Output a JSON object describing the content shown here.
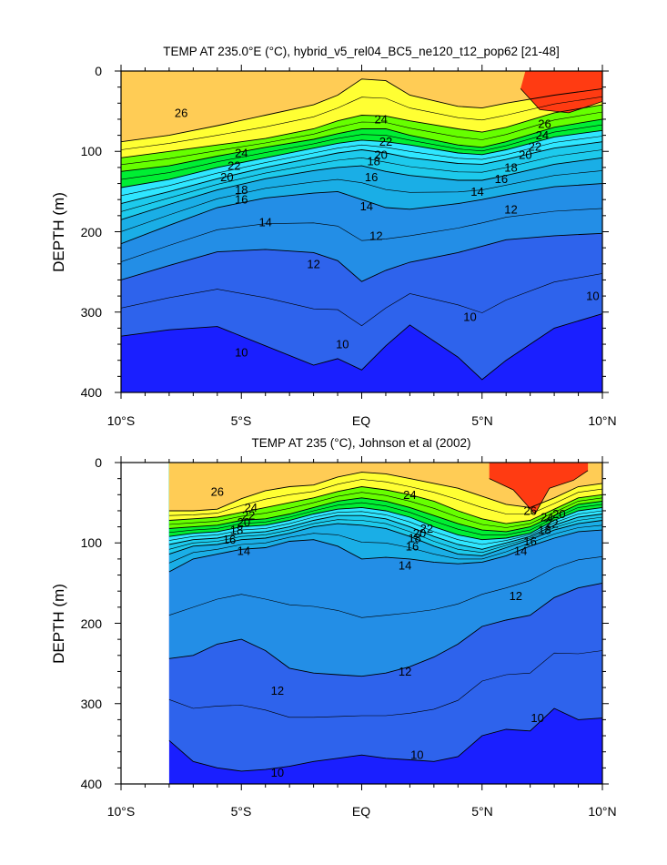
{
  "chart_data": [
    {
      "type": "contour",
      "title": "TEMP AT 235.0°E (°C), hybrid_v5_rel04_BC5_ne120_t12_pop62 [21-48]",
      "xlabel": "",
      "ylabel": "DEPTH (m)",
      "x_ticks": [
        {
          "value": -10,
          "label": "10°S"
        },
        {
          "value": -5,
          "label": "5°S"
        },
        {
          "value": 0,
          "label": "EQ"
        },
        {
          "value": 5,
          "label": "5°N"
        },
        {
          "value": 10,
          "label": "10°N"
        }
      ],
      "y_ticks": [
        {
          "value": 0,
          "label": "0"
        },
        {
          "value": 100,
          "label": "100"
        },
        {
          "value": 200,
          "label": "200"
        },
        {
          "value": 300,
          "label": "300"
        },
        {
          "value": 400,
          "label": "400"
        }
      ],
      "xlim": [
        -10,
        10
      ],
      "ylim": [
        0,
        400
      ],
      "data_xlim": [
        -10,
        10
      ],
      "isotherms_depth_m": {
        "lat": [
          -10,
          -8,
          -6,
          -4,
          -2,
          -1,
          0,
          1,
          2,
          4,
          5,
          6,
          8,
          10
        ],
        "26": [
          88,
          80,
          68,
          55,
          42,
          30,
          10,
          12,
          30,
          44,
          46,
          40,
          30,
          22
        ],
        "24": [
          108,
          100,
          92,
          84,
          72,
          62,
          55,
          56,
          62,
          72,
          76,
          70,
          52,
          42
        ],
        "22": [
          125,
          118,
          106,
          95,
          85,
          78,
          72,
          72,
          80,
          92,
          95,
          88,
          70,
          60
        ],
        "20": [
          145,
          135,
          120,
          108,
          96,
          90,
          86,
          88,
          92,
          102,
          104,
          98,
          82,
          74
        ],
        "18": [
          165,
          150,
          134,
          120,
          108,
          102,
          98,
          102,
          108,
          115,
          116,
          110,
          96,
          88
        ],
        "16": [
          185,
          166,
          148,
          134,
          124,
          120,
          118,
          125,
          130,
          136,
          136,
          130,
          116,
          108
        ],
        "14": [
          215,
          192,
          170,
          158,
          152,
          150,
          160,
          170,
          172,
          165,
          160,
          154,
          144,
          140
        ],
        "12": [
          260,
          242,
          225,
          222,
          226,
          236,
          262,
          248,
          238,
          226,
          218,
          210,
          205,
          202
        ],
        "10": [
          330,
          322,
          318,
          342,
          366,
          358,
          372,
          342,
          316,
          356,
          384,
          360,
          320,
          302
        ]
      },
      "contour_labels": [
        {
          "lat": -7.5,
          "depth": 52,
          "text": "26"
        },
        {
          "lat": 0.8,
          "depth": 60,
          "text": "24"
        },
        {
          "lat": 1.0,
          "depth": 88,
          "text": "22"
        },
        {
          "lat": 0.8,
          "depth": 104,
          "text": "20"
        },
        {
          "lat": 0.5,
          "depth": 112,
          "text": "18"
        },
        {
          "lat": 0.4,
          "depth": 132,
          "text": "16"
        },
        {
          "lat": 0.2,
          "depth": 168,
          "text": "14"
        },
        {
          "lat": -5.0,
          "depth": 102,
          "text": "24"
        },
        {
          "lat": -5.3,
          "depth": 118,
          "text": "22"
        },
        {
          "lat": -5.6,
          "depth": 132,
          "text": "20"
        },
        {
          "lat": -5.0,
          "depth": 148,
          "text": "18"
        },
        {
          "lat": -5.0,
          "depth": 160,
          "text": "16"
        },
        {
          "lat": -4.0,
          "depth": 188,
          "text": "14"
        },
        {
          "lat": -2.0,
          "depth": 240,
          "text": "12"
        },
        {
          "lat": 0.6,
          "depth": 205,
          "text": "12"
        },
        {
          "lat": 7.6,
          "depth": 66,
          "text": "26"
        },
        {
          "lat": 7.5,
          "depth": 80,
          "text": "24"
        },
        {
          "lat": 7.2,
          "depth": 94,
          "text": "22"
        },
        {
          "lat": 6.8,
          "depth": 104,
          "text": "20"
        },
        {
          "lat": 6.2,
          "depth": 120,
          "text": "18"
        },
        {
          "lat": 5.8,
          "depth": 134,
          "text": "16"
        },
        {
          "lat": 4.8,
          "depth": 150,
          "text": "14"
        },
        {
          "lat": 6.2,
          "depth": 172,
          "text": "12"
        },
        {
          "lat": -0.8,
          "depth": 340,
          "text": "10"
        },
        {
          "lat": -5.0,
          "depth": 350,
          "text": "10"
        },
        {
          "lat": 4.5,
          "depth": 306,
          "text": "10"
        },
        {
          "lat": 9.6,
          "depth": 280,
          "text": "10"
        }
      ]
    },
    {
      "type": "contour",
      "title": "TEMP AT 235 (°C), Johnson et al (2002)",
      "xlabel": "",
      "ylabel": "DEPTH (m)",
      "x_ticks": [
        {
          "value": -10,
          "label": "10°S"
        },
        {
          "value": -5,
          "label": "5°S"
        },
        {
          "value": 0,
          "label": "EQ"
        },
        {
          "value": 5,
          "label": "5°N"
        },
        {
          "value": 10,
          "label": "10°N"
        }
      ],
      "y_ticks": [
        {
          "value": 0,
          "label": "0"
        },
        {
          "value": 100,
          "label": "100"
        },
        {
          "value": 200,
          "label": "200"
        },
        {
          "value": 300,
          "label": "300"
        },
        {
          "value": 400,
          "label": "400"
        }
      ],
      "xlim": [
        -10,
        10
      ],
      "ylim": [
        0,
        400
      ],
      "data_xlim": [
        -8,
        10
      ],
      "isotherms_depth_m": {
        "lat": [
          -8,
          -7,
          -6,
          -5,
          -4,
          -3,
          -2,
          -1,
          0,
          1,
          2,
          3,
          4,
          5,
          6,
          7,
          8,
          9,
          10
        ],
        "26": [
          60,
          60,
          58,
          45,
          35,
          30,
          28,
          18,
          12,
          14,
          20,
          26,
          32,
          42,
          52,
          56,
          44,
          30,
          26
        ],
        "24": [
          72,
          70,
          68,
          62,
          56,
          50,
          44,
          36,
          30,
          34,
          40,
          48,
          60,
          70,
          76,
          72,
          58,
          44,
          40
        ],
        "22": [
          82,
          80,
          78,
          72,
          70,
          64,
          56,
          48,
          44,
          48,
          56,
          66,
          76,
          84,
          86,
          80,
          66,
          52,
          48
        ],
        "20": [
          92,
          88,
          86,
          80,
          78,
          72,
          64,
          58,
          56,
          60,
          68,
          80,
          90,
          96,
          94,
          88,
          72,
          60,
          56
        ],
        "18": [
          102,
          96,
          94,
          88,
          86,
          80,
          72,
          66,
          66,
          70,
          80,
          92,
          102,
          108,
          100,
          92,
          78,
          68,
          64
        ],
        "16": [
          114,
          104,
          102,
          96,
          94,
          88,
          80,
          76,
          78,
          82,
          92,
          104,
          114,
          116,
          106,
          96,
          84,
          76,
          72
        ],
        "14": [
          136,
          120,
          114,
          108,
          106,
          98,
          96,
          104,
          120,
          118,
          120,
          124,
          126,
          124,
          116,
          104,
          94,
          86,
          84
        ],
        "12": [
          244,
          240,
          226,
          220,
          234,
          256,
          262,
          264,
          266,
          262,
          254,
          242,
          226,
          204,
          196,
          190,
          168,
          156,
          150
        ],
        "10": [
          346,
          372,
          380,
          384,
          382,
          378,
          372,
          368,
          364,
          368,
          370,
          372,
          366,
          340,
          332,
          334,
          306,
          320,
          318
        ]
      },
      "contour_labels": [
        {
          "lat": -6.0,
          "depth": 36,
          "text": "26"
        },
        {
          "lat": -4.6,
          "depth": 56,
          "text": "24"
        },
        {
          "lat": -4.7,
          "depth": 66,
          "text": "22"
        },
        {
          "lat": -4.9,
          "depth": 74,
          "text": "20"
        },
        {
          "lat": -5.2,
          "depth": 84,
          "text": "18"
        },
        {
          "lat": -5.5,
          "depth": 96,
          "text": "16"
        },
        {
          "lat": -4.9,
          "depth": 110,
          "text": "14"
        },
        {
          "lat": 2.0,
          "depth": 40,
          "text": "24"
        },
        {
          "lat": 2.7,
          "depth": 82,
          "text": "22"
        },
        {
          "lat": 2.4,
          "depth": 88,
          "text": "20"
        },
        {
          "lat": 2.2,
          "depth": 94,
          "text": "18"
        },
        {
          "lat": 2.1,
          "depth": 104,
          "text": "16"
        },
        {
          "lat": 1.8,
          "depth": 128,
          "text": "14"
        },
        {
          "lat": 7.0,
          "depth": 60,
          "text": "26"
        },
        {
          "lat": 7.7,
          "depth": 68,
          "text": "24"
        },
        {
          "lat": 7.9,
          "depth": 76,
          "text": "22"
        },
        {
          "lat": 8.2,
          "depth": 64,
          "text": "20"
        },
        {
          "lat": 7.6,
          "depth": 84,
          "text": "18"
        },
        {
          "lat": 7.0,
          "depth": 98,
          "text": "16"
        },
        {
          "lat": 6.6,
          "depth": 110,
          "text": "14"
        },
        {
          "lat": 6.4,
          "depth": 166,
          "text": "12"
        },
        {
          "lat": 1.8,
          "depth": 260,
          "text": "12"
        },
        {
          "lat": -3.5,
          "depth": 284,
          "text": "12"
        },
        {
          "lat": 2.3,
          "depth": 364,
          "text": "10"
        },
        {
          "lat": -3.5,
          "depth": 386,
          "text": "10"
        },
        {
          "lat": 7.3,
          "depth": 318,
          "text": "10"
        }
      ]
    }
  ],
  "colors": {
    "level_colors": [
      "#1a1fff",
      "#2e63ec",
      "#238ee6",
      "#1aaee6",
      "#1dcaec",
      "#2fe6ff",
      "#00ee33",
      "#66ff00",
      "#ffff33",
      "#ffcc55",
      "#f9a23a",
      "#f08622",
      "#ff3b12"
    ],
    "contour_line": "#000000"
  }
}
